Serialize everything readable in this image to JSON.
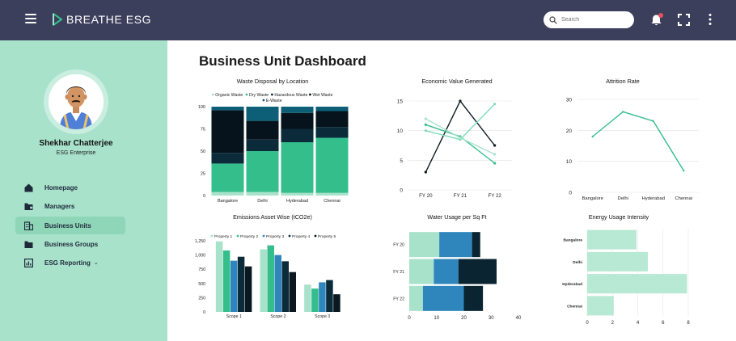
{
  "header": {
    "app_name": "BREATHE ESG",
    "search_placeholder": "Search"
  },
  "user": {
    "name": "Shekhar Chatterjee",
    "org": "ESG Enterprise"
  },
  "nav": {
    "items": [
      {
        "label": "Homepage",
        "icon": "home-icon"
      },
      {
        "label": "Managers",
        "icon": "folder-user-icon"
      },
      {
        "label": "Business Units",
        "icon": "building-icon",
        "active": true
      },
      {
        "label": "Business Groups",
        "icon": "folder-icon"
      },
      {
        "label": "ESG Reporting",
        "icon": "report-icon",
        "chevron": "⌄"
      }
    ]
  },
  "page": {
    "title": "Business Unit Dashboard"
  },
  "colors": {
    "topbar": "#3c3f5c",
    "sidebar": "#a8e2cb",
    "mint": "#a8e2cb",
    "green": "#34be8c",
    "blue": "#2f86bd",
    "navy": "#0b2a3a",
    "darkest": "#0a1820"
  },
  "chart_data": [
    {
      "id": "waste",
      "type": "bar",
      "stacked": true,
      "title": "Waste Disposal by Location",
      "categories": [
        "Bangalore",
        "Delhi",
        "Hyderabad",
        "Chennai"
      ],
      "ylim": [
        0,
        100
      ],
      "yticks": [
        "0",
        "25",
        "50",
        "75",
        "100"
      ],
      "legend": "top",
      "series": [
        {
          "name": "Organic Waste",
          "color": "#a8e2cb",
          "values": [
            4,
            4,
            3,
            3
          ]
        },
        {
          "name": "Dry Waste",
          "color": "#34be8c",
          "values": [
            32,
            46,
            57,
            62
          ]
        },
        {
          "name": "Hazardous Waste",
          "color": "#0b2a3a",
          "values": [
            12,
            13,
            15,
            12
          ]
        },
        {
          "name": "Wet Waste",
          "color": "#06131c",
          "values": [
            48,
            21,
            18,
            18
          ]
        },
        {
          "name": "E-Waste",
          "color": "#0d5f78",
          "values": [
            4,
            16,
            7,
            5
          ]
        }
      ]
    },
    {
      "id": "economic",
      "type": "line",
      "title": "Economic Value Generated",
      "categories": [
        "FY 20",
        "FY 21",
        "FY 22"
      ],
      "ylim": [
        0,
        15
      ],
      "yticks": [
        "0",
        "5",
        "10",
        "15"
      ],
      "series": [
        {
          "color": "#0a1820",
          "values": [
            3,
            15,
            7.5
          ]
        },
        {
          "color": "#34be8c",
          "values": [
            11,
            9,
            4.5
          ]
        },
        {
          "color": "#7fdcbb",
          "values": [
            10,
            8.5,
            14.5
          ]
        },
        {
          "color": "#a8e2cb",
          "values": [
            12,
            8.8,
            6
          ]
        }
      ]
    },
    {
      "id": "attrition",
      "type": "line",
      "title": "Attrition Rate",
      "categories": [
        "Bangalore",
        "Delhi",
        "Hyderabad",
        "Chennai"
      ],
      "ylim": [
        0,
        30
      ],
      "yticks": [
        "0",
        "10",
        "20",
        "30"
      ],
      "series": [
        {
          "color": "#34be8c",
          "values": [
            18,
            26,
            23,
            7
          ]
        }
      ]
    },
    {
      "id": "emissions",
      "type": "bar",
      "title": "Emissions Asset Wise (tCO2e)",
      "categories": [
        "Scope 1",
        "Scope 2",
        "Scope 3"
      ],
      "ylim": [
        0,
        1250
      ],
      "yticks": [
        "0",
        "250",
        "500",
        "750",
        "1,000",
        "1,250"
      ],
      "legend": "top",
      "series": [
        {
          "name": "Property 1",
          "color": "#a8e2cb",
          "values": [
            1240,
            1100,
            480
          ]
        },
        {
          "name": "Property 2",
          "color": "#34be8c",
          "values": [
            1080,
            1170,
            410
          ]
        },
        {
          "name": "Property 3",
          "color": "#2f86bd",
          "values": [
            900,
            1000,
            520
          ]
        },
        {
          "name": "Property 4",
          "color": "#0b2a3a",
          "values": [
            970,
            890,
            560
          ]
        },
        {
          "name": "Property 5",
          "color": "#0a1820",
          "values": [
            800,
            700,
            310
          ]
        }
      ]
    },
    {
      "id": "water",
      "type": "bar",
      "orientation": "horizontal",
      "stacked": true,
      "title": "Water Usage per Sq Ft",
      "categories": [
        "FY 20",
        "FY 21",
        "FY 22"
      ],
      "xlim": [
        0,
        40
      ],
      "xticks": [
        "0",
        "10",
        "20",
        "30",
        "40"
      ],
      "series": [
        {
          "color": "#a8e2cb",
          "values": [
            11,
            9,
            5
          ]
        },
        {
          "color": "#2f86bd",
          "values": [
            12,
            9,
            15
          ]
        },
        {
          "color": "#0a2431",
          "values": [
            3,
            14,
            7
          ]
        }
      ]
    },
    {
      "id": "energy",
      "type": "bar",
      "orientation": "horizontal",
      "title": "Energy Usage Intensity",
      "categories": [
        "Bangalore",
        "Delhi",
        "Hyderabad",
        "Chennai"
      ],
      "xlim": [
        0,
        8
      ],
      "xticks": [
        "0",
        "2",
        "4",
        "6",
        "8"
      ],
      "series": [
        {
          "color": "#b8e9d4",
          "values": [
            3.9,
            4.8,
            7.9,
            2.1
          ]
        }
      ]
    }
  ]
}
